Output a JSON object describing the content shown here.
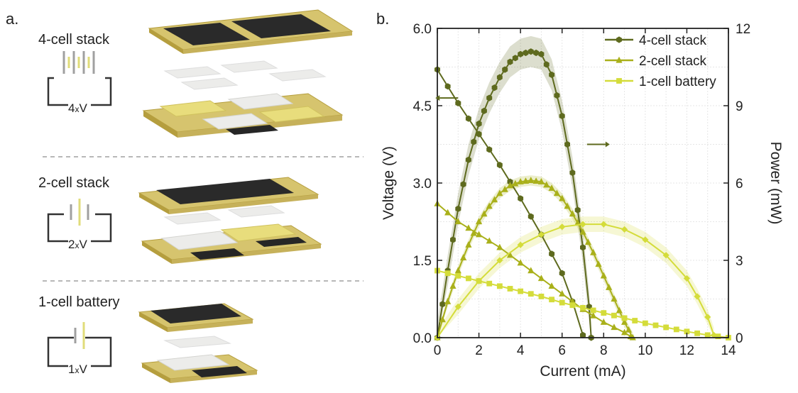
{
  "panel_a": {
    "label": "a.",
    "rows": [
      {
        "title": "4-cell stack",
        "voltage_label_num": "4",
        "voltage_label_x": "x",
        "voltage_label_v": "V"
      },
      {
        "title": "2-cell stack",
        "voltage_label_num": "2",
        "voltage_label_x": "x",
        "voltage_label_v": "V"
      },
      {
        "title": "1-cell battery",
        "voltage_label_num": "1",
        "voltage_label_x": "x",
        "voltage_label_v": "V"
      }
    ],
    "colors": {
      "gold": "#c9b458",
      "gold_dark": "#a8923a",
      "yellow_pad": "#e8dd7c",
      "white_pad": "#ecece8",
      "black_pad": "#262626",
      "separator": "#a0a0a0"
    }
  },
  "chart_data": {
    "type": "line",
    "panel_label": "b.",
    "xlabel": "Current (mA)",
    "ylabel": "Voltage (V)",
    "ylabel_right": "Power (mW)",
    "xlim": [
      0,
      14
    ],
    "ylim": [
      0,
      6.0
    ],
    "ylim_right": [
      0,
      12
    ],
    "x_ticks": [
      "0",
      "2",
      "4",
      "6",
      "8",
      "10",
      "12",
      "14"
    ],
    "y_ticks": [
      "0.0",
      "1.5",
      "3.0",
      "4.5",
      "6.0"
    ],
    "y_ticks_right": [
      "0",
      "3",
      "6",
      "9",
      "12"
    ],
    "grid": true,
    "legend_position": "top-right",
    "legend": [
      {
        "name": "4-cell stack",
        "marker": "hexagon",
        "color": "#5e6a1e"
      },
      {
        "name": "2-cell stack",
        "marker": "triangle",
        "color": "#a9b01a"
      },
      {
        "name": "1-cell battery",
        "marker": "square",
        "color": "#d4dc3a"
      }
    ],
    "series": [
      {
        "legend_index": 0,
        "axis": "left",
        "kind": "voltage",
        "points": [
          [
            0,
            5.2
          ],
          [
            1,
            4.55
          ],
          [
            2,
            3.95
          ],
          [
            3,
            3.35
          ],
          [
            4,
            2.7
          ],
          [
            5,
            2.0
          ],
          [
            6,
            1.25
          ],
          [
            6.5,
            0.7
          ],
          [
            7,
            0.05
          ]
        ]
      },
      {
        "legend_index": 0,
        "axis": "right",
        "kind": "power",
        "band": 0.6,
        "points": [
          [
            0,
            0
          ],
          [
            0.5,
            2.6
          ],
          [
            1,
            5.0
          ],
          [
            1.5,
            6.9
          ],
          [
            2,
            8.3
          ],
          [
            2.5,
            9.3
          ],
          [
            3,
            10.1
          ],
          [
            3.5,
            10.7
          ],
          [
            4,
            11.0
          ],
          [
            4.5,
            11.1
          ],
          [
            5,
            11.0
          ],
          [
            5.5,
            10.2
          ],
          [
            6,
            8.6
          ],
          [
            6.5,
            6.4
          ],
          [
            7,
            3.5
          ],
          [
            7.3,
            1.2
          ],
          [
            7.4,
            0
          ]
        ]
      },
      {
        "legend_index": 1,
        "axis": "left",
        "kind": "voltage",
        "points": [
          [
            0,
            2.6
          ],
          [
            1,
            2.25
          ],
          [
            2,
            2.0
          ],
          [
            3,
            1.75
          ],
          [
            4,
            1.45
          ],
          [
            5,
            1.15
          ],
          [
            6,
            0.85
          ],
          [
            7,
            0.55
          ],
          [
            8,
            0.3
          ],
          [
            9,
            0.1
          ],
          [
            9.3,
            0.02
          ]
        ]
      },
      {
        "legend_index": 1,
        "axis": "right",
        "kind": "power",
        "band": 0.2,
        "points": [
          [
            0,
            0
          ],
          [
            0.5,
            1.4
          ],
          [
            1,
            2.6
          ],
          [
            1.5,
            3.6
          ],
          [
            2,
            4.5
          ],
          [
            2.5,
            5.1
          ],
          [
            3,
            5.6
          ],
          [
            3.5,
            5.9
          ],
          [
            4,
            6.05
          ],
          [
            4.5,
            6.1
          ],
          [
            5,
            6.05
          ],
          [
            5.5,
            5.8
          ],
          [
            6,
            5.4
          ],
          [
            6.5,
            4.8
          ],
          [
            7,
            4.1
          ],
          [
            7.5,
            3.3
          ],
          [
            8,
            2.4
          ],
          [
            8.5,
            1.5
          ],
          [
            9,
            0.6
          ],
          [
            9.4,
            0
          ]
        ]
      },
      {
        "legend_index": 2,
        "axis": "left",
        "kind": "voltage",
        "points": [
          [
            0,
            1.3
          ],
          [
            1,
            1.2
          ],
          [
            2,
            1.1
          ],
          [
            3,
            1.0
          ],
          [
            4,
            0.9
          ],
          [
            5,
            0.8
          ],
          [
            6,
            0.68
          ],
          [
            7,
            0.58
          ],
          [
            8,
            0.48
          ],
          [
            9,
            0.38
          ],
          [
            10,
            0.28
          ],
          [
            11,
            0.2
          ],
          [
            12,
            0.12
          ],
          [
            13,
            0.05
          ],
          [
            14,
            0.0
          ]
        ]
      },
      {
        "legend_index": 2,
        "axis": "right",
        "kind": "power",
        "band": 0.3,
        "points": [
          [
            0,
            0
          ],
          [
            1,
            1.2
          ],
          [
            2,
            2.2
          ],
          [
            3,
            3.0
          ],
          [
            4,
            3.6
          ],
          [
            5,
            4.0
          ],
          [
            6,
            4.3
          ],
          [
            7,
            4.4
          ],
          [
            8,
            4.4
          ],
          [
            9,
            4.2
          ],
          [
            10,
            3.8
          ],
          [
            11,
            3.2
          ],
          [
            12,
            2.3
          ],
          [
            12.5,
            1.6
          ],
          [
            13,
            0.8
          ],
          [
            13.3,
            0.1
          ]
        ]
      }
    ],
    "annotations": [
      {
        "type": "arrow",
        "direction": "left",
        "target": "Voltage",
        "x": 1.0,
        "y": 4.65
      },
      {
        "type": "arrow",
        "direction": "right",
        "target": "Power",
        "x": 7.2,
        "y": 3.75
      }
    ]
  }
}
